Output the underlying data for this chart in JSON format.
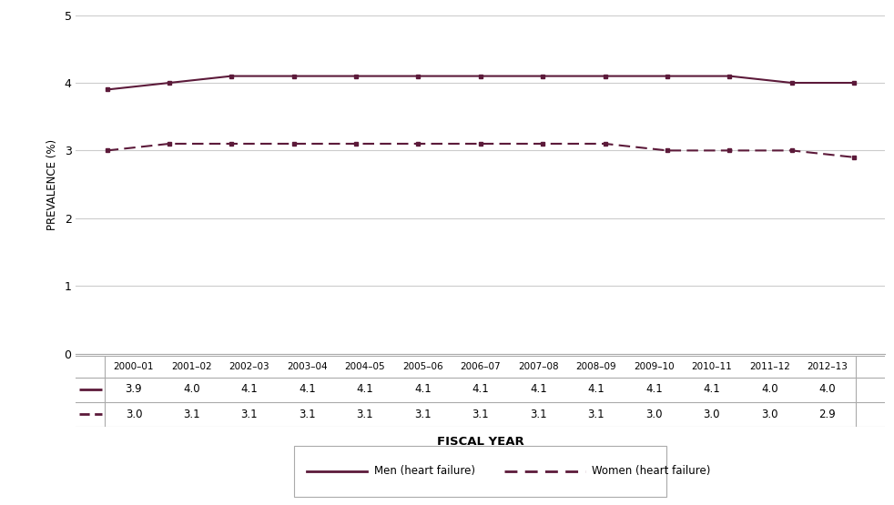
{
  "fiscal_years": [
    "2000–01",
    "2001–02",
    "2002–03",
    "2003–04",
    "2004–05",
    "2005–06",
    "2006–07",
    "2007–08",
    "2008–09",
    "2009–10",
    "2010–11",
    "2011–12",
    "2012–13"
  ],
  "men_values": [
    3.9,
    4.0,
    4.1,
    4.1,
    4.1,
    4.1,
    4.1,
    4.1,
    4.1,
    4.1,
    4.1,
    4.0,
    4.0
  ],
  "women_values": [
    3.0,
    3.1,
    3.1,
    3.1,
    3.1,
    3.1,
    3.1,
    3.1,
    3.1,
    3.0,
    3.0,
    3.0,
    2.9
  ],
  "line_color": "#5c1a3a",
  "ylabel": "PREVALENCE (%)",
  "xlabel": "FISCAL YEAR",
  "ylim": [
    0,
    5
  ],
  "yticks": [
    0,
    1,
    2,
    3,
    4,
    5
  ],
  "legend_men": "Men (heart failure)",
  "legend_women": "Women (heart failure)",
  "background_color": "#ffffff",
  "grid_color": "#cccccc",
  "table_row1_label": "3.9\t4.0\t4.1\t4.1\t4.1\t4.1\t4.1\t4.1\t4.1\t4.1\t4.1\t4.0\t4.0",
  "table_row2_label": "3.0\t3.1\t3.1\t3.1\t3.1\t3.1\t3.1\t3.1\t3.1\t3.0\t3.0\t3.0\t2.9",
  "table_row1": [
    3.9,
    4.0,
    4.1,
    4.1,
    4.1,
    4.1,
    4.1,
    4.1,
    4.1,
    4.1,
    4.1,
    4.0,
    4.0
  ],
  "table_row2": [
    3.0,
    3.1,
    3.1,
    3.1,
    3.1,
    3.1,
    3.1,
    3.1,
    3.1,
    3.0,
    3.0,
    3.0,
    2.9
  ]
}
